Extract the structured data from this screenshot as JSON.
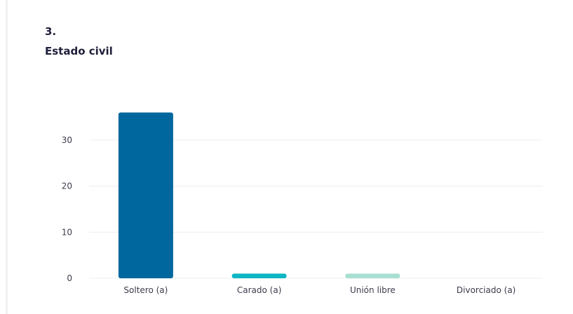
{
  "question": {
    "number": "3.",
    "title": "Estado civil"
  },
  "chart_data": {
    "type": "bar",
    "categories": [
      "Soltero (a)",
      "Carado (a)",
      "Unión libre",
      "Divorciado (a)"
    ],
    "values": [
      36,
      1,
      1,
      0
    ],
    "colors": [
      "#00679e",
      "#0cb6c3",
      "#a8dfd0",
      "#d8d8d8"
    ],
    "yticks": [
      0,
      10,
      20,
      30
    ],
    "ylim": [
      0,
      37
    ],
    "grid": true,
    "gridColor": "#e9edf2",
    "title": "",
    "xlabel": "",
    "ylabel": ""
  }
}
